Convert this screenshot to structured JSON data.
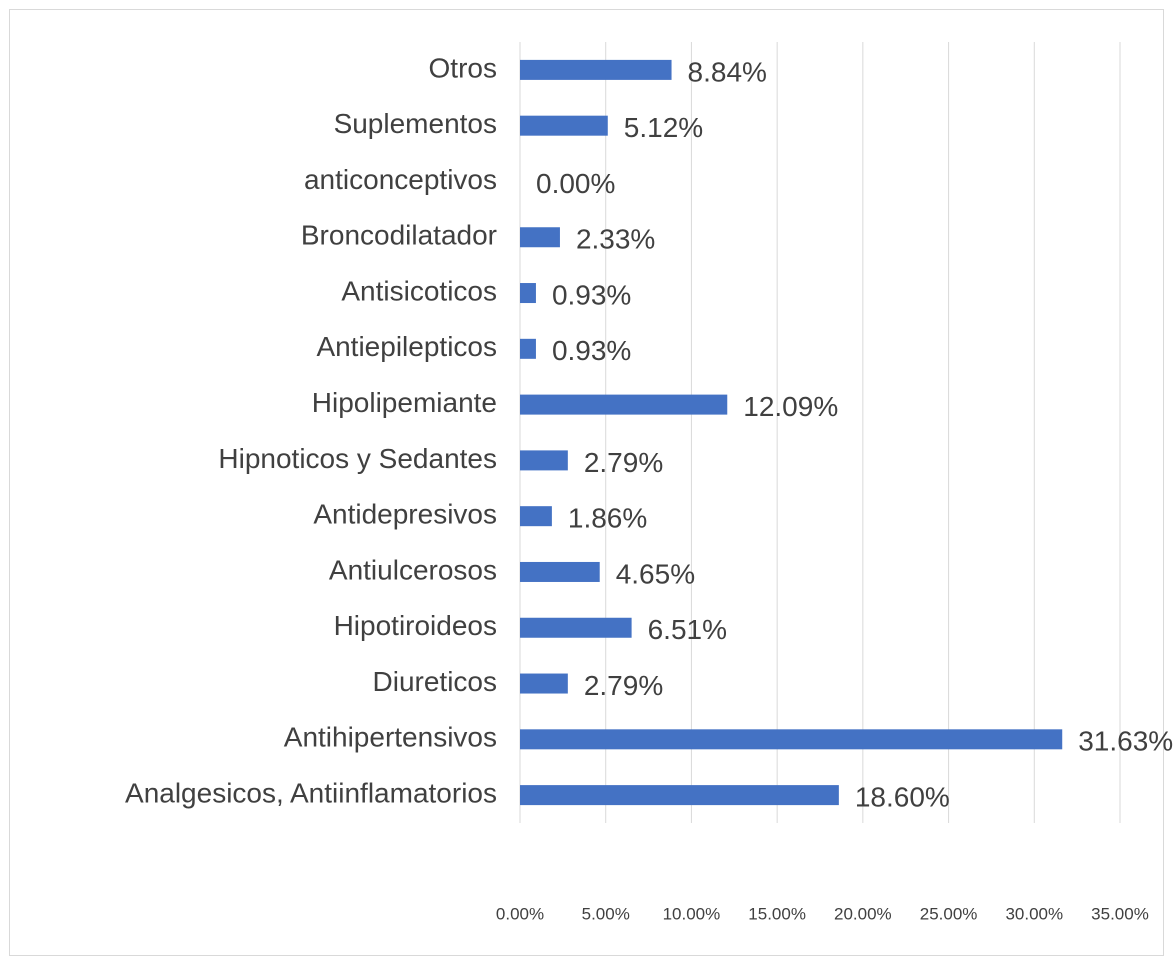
{
  "chart_data": {
    "type": "bar",
    "orientation": "horizontal",
    "categories": [
      "Analgesicos, Antiinflamatorios",
      "Antihipertensivos",
      "Diureticos",
      "Hipotiroideos",
      "Antiulcerosos",
      "Antidepresivos",
      "Hipnoticos y Sedantes",
      "Hipolipemiante",
      "Antiepilepticos",
      "Antisicoticos",
      "Broncodilatador",
      "anticonceptivos",
      "Suplementos ",
      "Otros"
    ],
    "values": [
      18.6,
      31.63,
      2.79,
      6.51,
      4.65,
      1.86,
      2.79,
      12.09,
      0.93,
      0.93,
      2.33,
      0.0,
      5.12,
      8.84
    ],
    "value_labels": [
      "18.60%",
      "31.63%",
      "2.79%",
      "6.51%",
      "4.65%",
      "1.86%",
      "2.79%",
      "12.09%",
      "0.93%",
      "0.93%",
      "2.33%",
      "0.00%",
      "5.12%",
      "8.84%"
    ],
    "color": "#4472c4",
    "xlim": [
      0,
      35
    ],
    "xticks": [
      {
        "value": 0,
        "label": "0.00%"
      },
      {
        "value": 5,
        "label": "5.00%"
      },
      {
        "value": 10,
        "label": "10.00%"
      },
      {
        "value": 15,
        "label": "15.00%"
      },
      {
        "value": 20,
        "label": "20.00%"
      },
      {
        "value": 25,
        "label": "25.00%"
      },
      {
        "value": 30,
        "label": "30.00%"
      },
      {
        "value": 35,
        "label": "35.00%"
      }
    ],
    "grid": true
  }
}
